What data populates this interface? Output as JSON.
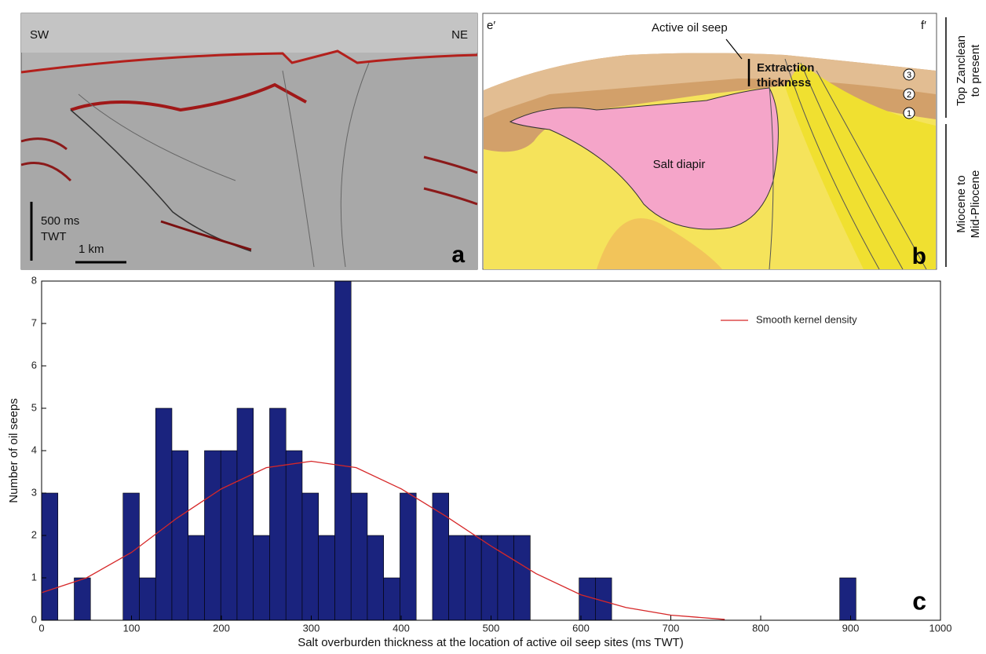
{
  "chart_data": {
    "type": "histogram",
    "xlabel": "Salt overburden thickness at the location of active oil seep sites (ms TWT)",
    "ylabel": "Number of oil seeps",
    "panel_label": "c",
    "bins": [
      0,
      18.12,
      36.24,
      54.36,
      72.48,
      90.6,
      108.72,
      126.84,
      144.96,
      163.08,
      181.2,
      199.32,
      217.44,
      235.56,
      253.68,
      271.8,
      289.92,
      308.04,
      326.16,
      344.28,
      362.4,
      380.52,
      398.64,
      416.76,
      434.88,
      453,
      471.12,
      489.24,
      507.36,
      525.48,
      543.6,
      561.72,
      579.84,
      597.96,
      616.08,
      634.2,
      652.32,
      670.44,
      688.56,
      706.68,
      724.8,
      742.92,
      761.04,
      779.16,
      797.28,
      815.4,
      833.52,
      851.64,
      869.76,
      887.88,
      906
    ],
    "values": [
      3,
      0,
      1,
      0,
      0,
      3,
      1,
      5,
      4,
      2,
      4,
      4,
      5,
      2,
      5,
      4,
      3,
      2,
      8,
      3,
      2,
      1,
      3,
      0,
      3,
      2,
      2,
      2,
      2,
      2,
      0,
      0,
      0,
      1,
      1,
      0,
      0,
      0,
      0,
      0,
      0,
      0,
      0,
      0,
      0,
      0,
      0,
      0,
      0,
      1
    ],
    "color": "#1a237e",
    "lines": [
      {
        "name": "Smooth kernel density",
        "color": "#d62728",
        "x": [
          0,
          50,
          100,
          150,
          200,
          250,
          300,
          350,
          400,
          450,
          500,
          550,
          600,
          650,
          700,
          760
        ],
        "values": [
          0.65,
          1.0,
          1.6,
          2.4,
          3.1,
          3.6,
          3.75,
          3.6,
          3.1,
          2.45,
          1.75,
          1.1,
          0.6,
          0.3,
          0.12,
          0.02
        ]
      }
    ],
    "xlim": [
      0,
      1000
    ],
    "xticks": [
      0,
      100,
      200,
      300,
      400,
      500,
      600,
      700,
      800,
      900,
      1000
    ],
    "ylim": [
      0,
      8
    ],
    "yticks": [
      0,
      1,
      2,
      3,
      4,
      5,
      6,
      7,
      8
    ],
    "legend": "upper-right"
  },
  "panel_a": {
    "left": "SW",
    "right": "NE",
    "time_scale": "500 ms",
    "time_unit": "TWT",
    "distance_scale": "1 km",
    "label": "a"
  },
  "panel_b": {
    "left": "e′",
    "right": "f′",
    "seep": "Active oil seep",
    "extraction": [
      "Extraction",
      "thickness"
    ],
    "diapir": "Salt diapir",
    "units": [
      "3",
      "2",
      "1"
    ],
    "label": "b",
    "upper_interval": [
      "Top Zanclean",
      "to present"
    ],
    "lower_interval": [
      "Miocene to",
      "Mid-Pliocene"
    ]
  }
}
